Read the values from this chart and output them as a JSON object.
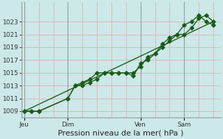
{
  "xlabel": "Pression niveau de la mer( hPa )",
  "bg_color": "#cce8e8",
  "grid_color": "#ddb8b8",
  "line_color": "#1a5c1a",
  "ylim": [
    1008.0,
    1026.0
  ],
  "yticks": [
    1009,
    1011,
    1013,
    1015,
    1017,
    1019,
    1021,
    1023
  ],
  "xlim": [
    -0.2,
    13.5
  ],
  "vlines_x": [
    0.0,
    3.0,
    8.0,
    11.0
  ],
  "vlines_labels": [
    "Jeu",
    "Dim",
    "Ven",
    "Sam"
  ],
  "series1_x": [
    0.0,
    0.5,
    1.0,
    3.0,
    3.5,
    4.0,
    4.5,
    5.0,
    5.5,
    6.0,
    6.5,
    7.0,
    7.5,
    8.0,
    8.5,
    9.0,
    9.5,
    10.0,
    10.5,
    11.0,
    11.5,
    12.0,
    12.5,
    13.0
  ],
  "series1_y": [
    1009,
    1009,
    1009,
    1011,
    1013,
    1013,
    1013.5,
    1014,
    1015,
    1015,
    1015,
    1015,
    1015,
    1016,
    1017.5,
    1018,
    1019,
    1020,
    1021,
    1021,
    1022,
    1023.5,
    1024,
    1023
  ],
  "series2_x": [
    0.0,
    0.5,
    1.0,
    3.0,
    3.5,
    4.0,
    4.5,
    5.0,
    5.5,
    6.0,
    6.5,
    7.0,
    7.5,
    8.0,
    8.5,
    9.0,
    9.5,
    10.0,
    10.5,
    11.0,
    11.5,
    12.0,
    12.5,
    13.0
  ],
  "series2_y": [
    1009,
    1009,
    1009,
    1011,
    1013,
    1013.5,
    1014,
    1015,
    1015,
    1015,
    1015,
    1015,
    1014.5,
    1016.5,
    1017,
    1018,
    1019.5,
    1020.5,
    1021,
    1022.5,
    1023,
    1024,
    1023,
    1022.5
  ],
  "series3_x": [
    0.0,
    13.0
  ],
  "series3_y": [
    1009,
    1023
  ],
  "marker_size": 2.8,
  "line_width": 1.0,
  "tick_fontsize": 6.5,
  "label_fontsize": 8.0
}
